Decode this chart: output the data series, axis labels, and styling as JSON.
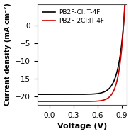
{
  "title": "",
  "xlabel": "Voltage (V)",
  "ylabel": "Current density (mA cm⁻²)",
  "xlim": [
    -0.15,
    0.97
  ],
  "ylim": [
    -22.5,
    6
  ],
  "xticks": [
    0.0,
    0.3,
    0.6,
    0.9
  ],
  "yticks": [
    0,
    -5,
    -10,
    -15,
    -20
  ],
  "legend": [
    "PB2F-Cl:IT-4F",
    "PB2F-2Cl:IT-4F"
  ],
  "colors": [
    "#000000",
    "#cc0000"
  ],
  "background_color": "#ffffff",
  "jsc_black": -19.5,
  "jsc_red": -21.5,
  "voc_black": 0.925,
  "voc_red": 0.925,
  "n_black": 2.8,
  "n_red": 2.4,
  "figsize": [
    1.85,
    1.89
  ],
  "dpi": 100
}
